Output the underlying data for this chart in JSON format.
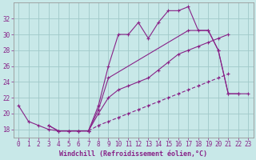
{
  "xlabel": "Windchill (Refroidissement éolien,°C)",
  "background_color": "#c8e8e8",
  "grid_color": "#a0c8c8",
  "line_color": "#882288",
  "x_data": [
    0,
    1,
    2,
    3,
    4,
    5,
    6,
    7,
    8,
    9,
    10,
    11,
    12,
    13,
    14,
    15,
    16,
    17,
    18,
    19,
    20,
    21,
    22,
    23
  ],
  "line1_y": [
    21.0,
    19.0,
    18.5,
    18.0,
    17.8,
    17.8,
    17.8,
    17.8,
    21.0,
    26.0,
    30.0,
    30.0,
    31.5,
    29.5,
    31.5,
    33.0,
    33.0,
    33.5,
    30.5,
    30.5,
    28.0,
    22.5,
    22.5,
    null
  ],
  "line2_y": [
    null,
    null,
    null,
    18.5,
    17.8,
    17.8,
    17.8,
    17.8,
    20.5,
    24.5,
    null,
    null,
    null,
    null,
    null,
    null,
    null,
    30.5,
    null,
    30.5,
    28.0,
    22.5,
    22.5,
    22.5
  ],
  "line3_y": [
    null,
    null,
    null,
    18.5,
    17.8,
    17.8,
    17.8,
    17.8,
    20.0,
    22.0,
    23.0,
    23.5,
    24.0,
    24.5,
    25.5,
    26.5,
    27.5,
    28.0,
    28.5,
    29.0,
    29.5,
    30.0,
    null,
    null
  ],
  "line4_y": [
    null,
    null,
    null,
    null,
    null,
    null,
    null,
    17.8,
    18.5,
    19.0,
    19.5,
    20.0,
    20.5,
    21.0,
    21.5,
    22.0,
    22.5,
    23.0,
    23.5,
    24.0,
    24.5,
    25.0,
    null,
    null
  ],
  "xlim": [
    -0.5,
    23.5
  ],
  "ylim": [
    17.0,
    34.0
  ],
  "yticks": [
    18,
    20,
    22,
    24,
    26,
    28,
    30,
    32
  ],
  "xticks": [
    0,
    1,
    2,
    3,
    4,
    5,
    6,
    7,
    8,
    9,
    10,
    11,
    12,
    13,
    14,
    15,
    16,
    17,
    18,
    19,
    20,
    21,
    22,
    23
  ],
  "xlabel_fontsize": 6.0,
  "tick_fontsize": 5.5
}
